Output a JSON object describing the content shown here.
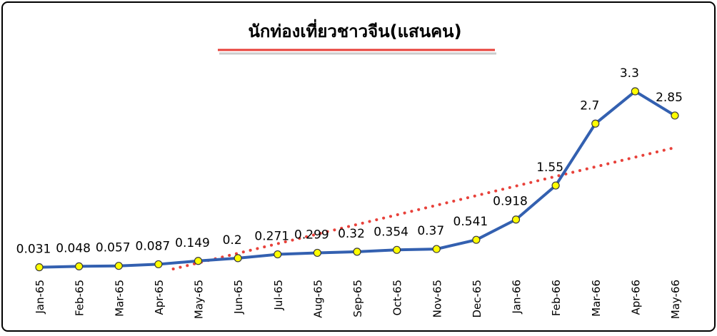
{
  "chart_data": {
    "type": "line",
    "title": "นักท่องเที่ยวชาวจีน(แสนคน)",
    "categories": [
      "Jan-65",
      "Feb-65",
      "Mar-65",
      "Apr-65",
      "May-65",
      "Jun-65",
      "Jul-65",
      "Aug-65",
      "Sep-65",
      "Oct-65",
      "Nov-65",
      "Dec-65",
      "Jan-66",
      "Feb-66",
      "Mar-66",
      "Apr-66",
      "May-66"
    ],
    "series": [
      {
        "color": "#3360b0",
        "marker_color": "#ffff00",
        "values": [
          0.031,
          0.048,
          0.057,
          0.087,
          0.149,
          0.2,
          0.271,
          0.299,
          0.32,
          0.354,
          0.37,
          0.541,
          0.918,
          1.55,
          2.7,
          3.3,
          2.85
        ]
      }
    ],
    "trendline": {
      "type": "linear",
      "color": "#e8413a"
    }
  }
}
